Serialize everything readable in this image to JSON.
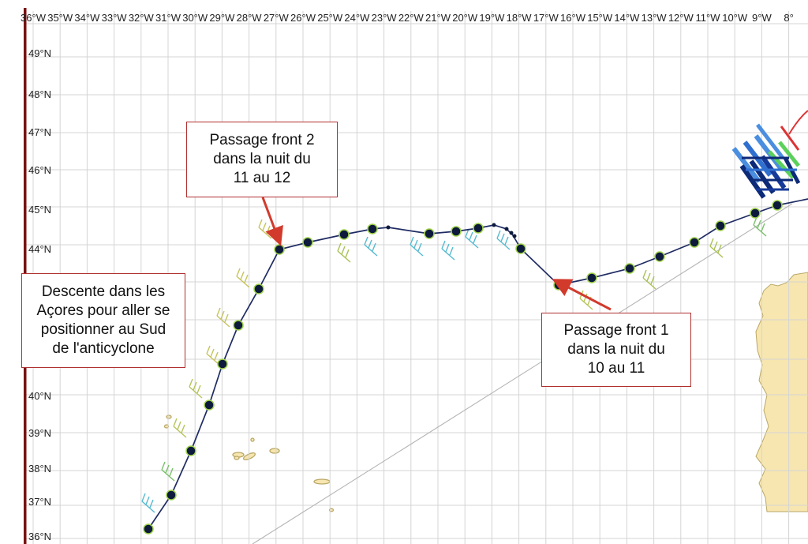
{
  "map": {
    "longitude_labels": [
      "36°W",
      "35°W",
      "34°W",
      "33°W",
      "32°W",
      "31°W",
      "30°W",
      "29°W",
      "28°W",
      "27°W",
      "26°W",
      "25°W",
      "24°W",
      "23°W",
      "22°W",
      "21°W",
      "20°W",
      "19°W",
      "18°W",
      "17°W",
      "16°W",
      "15°W",
      "14°W",
      "13°W",
      "12°W",
      "11°W",
      "10°W",
      "9°W",
      "8°"
    ],
    "latitude_labels": [
      "49°N",
      "48°N",
      "47°N",
      "46°N",
      "45°N",
      "44°N",
      "40°N",
      "39°N",
      "38°N",
      "37°N",
      "36°N"
    ],
    "colors": {
      "grid": "#d4d4d4",
      "route": "#1f2b63",
      "waypoint": "#0d1a3c",
      "waypoint_ring": "#9fd24a",
      "land": "#f7e6b0",
      "coast": "#b9a867",
      "callout_border": "#b03030",
      "arrow": "#d23a2c",
      "left_border": "#7a1010",
      "orthodromy": "#b5b5b5"
    }
  },
  "annotations": {
    "front2": [
      "Passage front 2",
      "dans la nuit du",
      "11 au 12"
    ],
    "acores": [
      "Descente dans les",
      "Açores pour aller se",
      "positionner au Sud",
      "de l'anticyclone"
    ],
    "front1": [
      "Passage front 1",
      "dans la nuit du",
      "10 au 11"
    ]
  }
}
